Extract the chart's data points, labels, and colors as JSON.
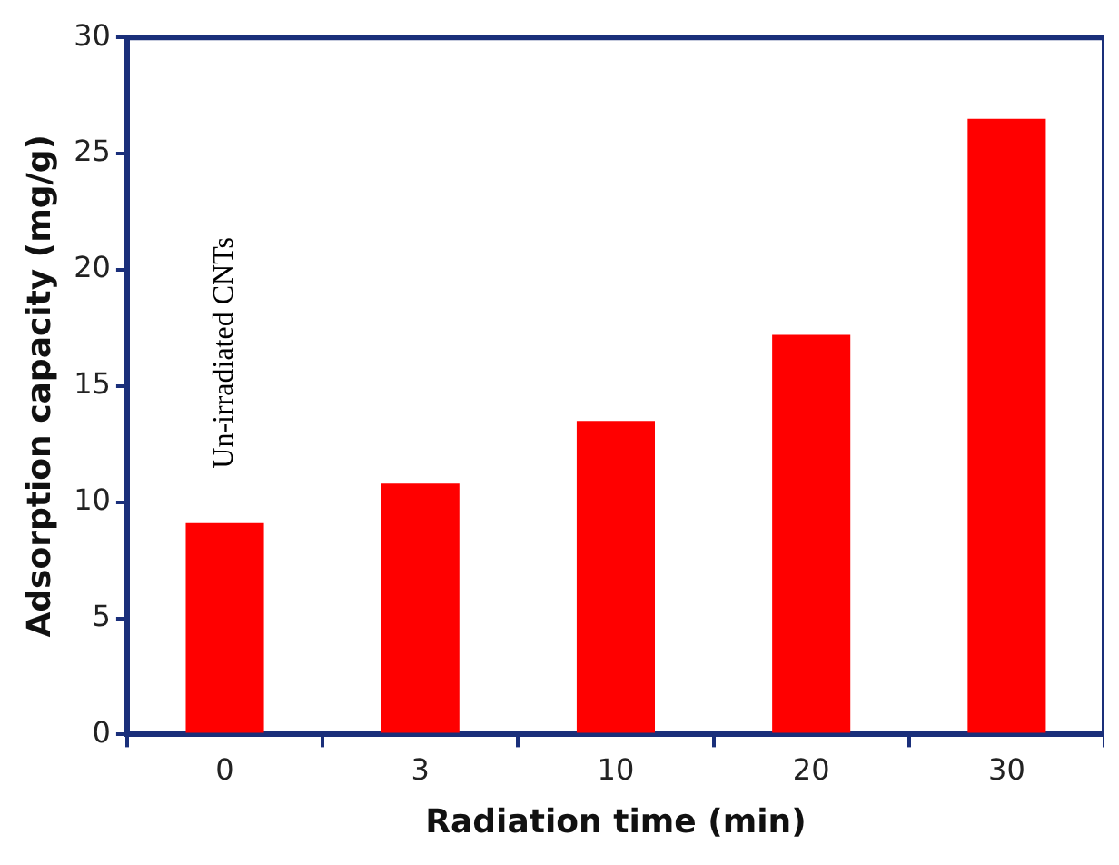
{
  "chart_data": {
    "type": "bar",
    "xlabel": "Radiation time (min)",
    "ylabel": "Adsorption capacity (mg/g)",
    "categories": [
      "0",
      "3",
      "10",
      "20",
      "30"
    ],
    "values": [
      9.1,
      10.8,
      13.5,
      17.2,
      26.5
    ],
    "color": "#ff0000",
    "ylim": [
      0,
      30
    ],
    "yticks": [
      0,
      5,
      10,
      15,
      20,
      25,
      30
    ],
    "grid": false,
    "legend": false,
    "annotations": [
      "Un-irradiated CNTs"
    ]
  }
}
